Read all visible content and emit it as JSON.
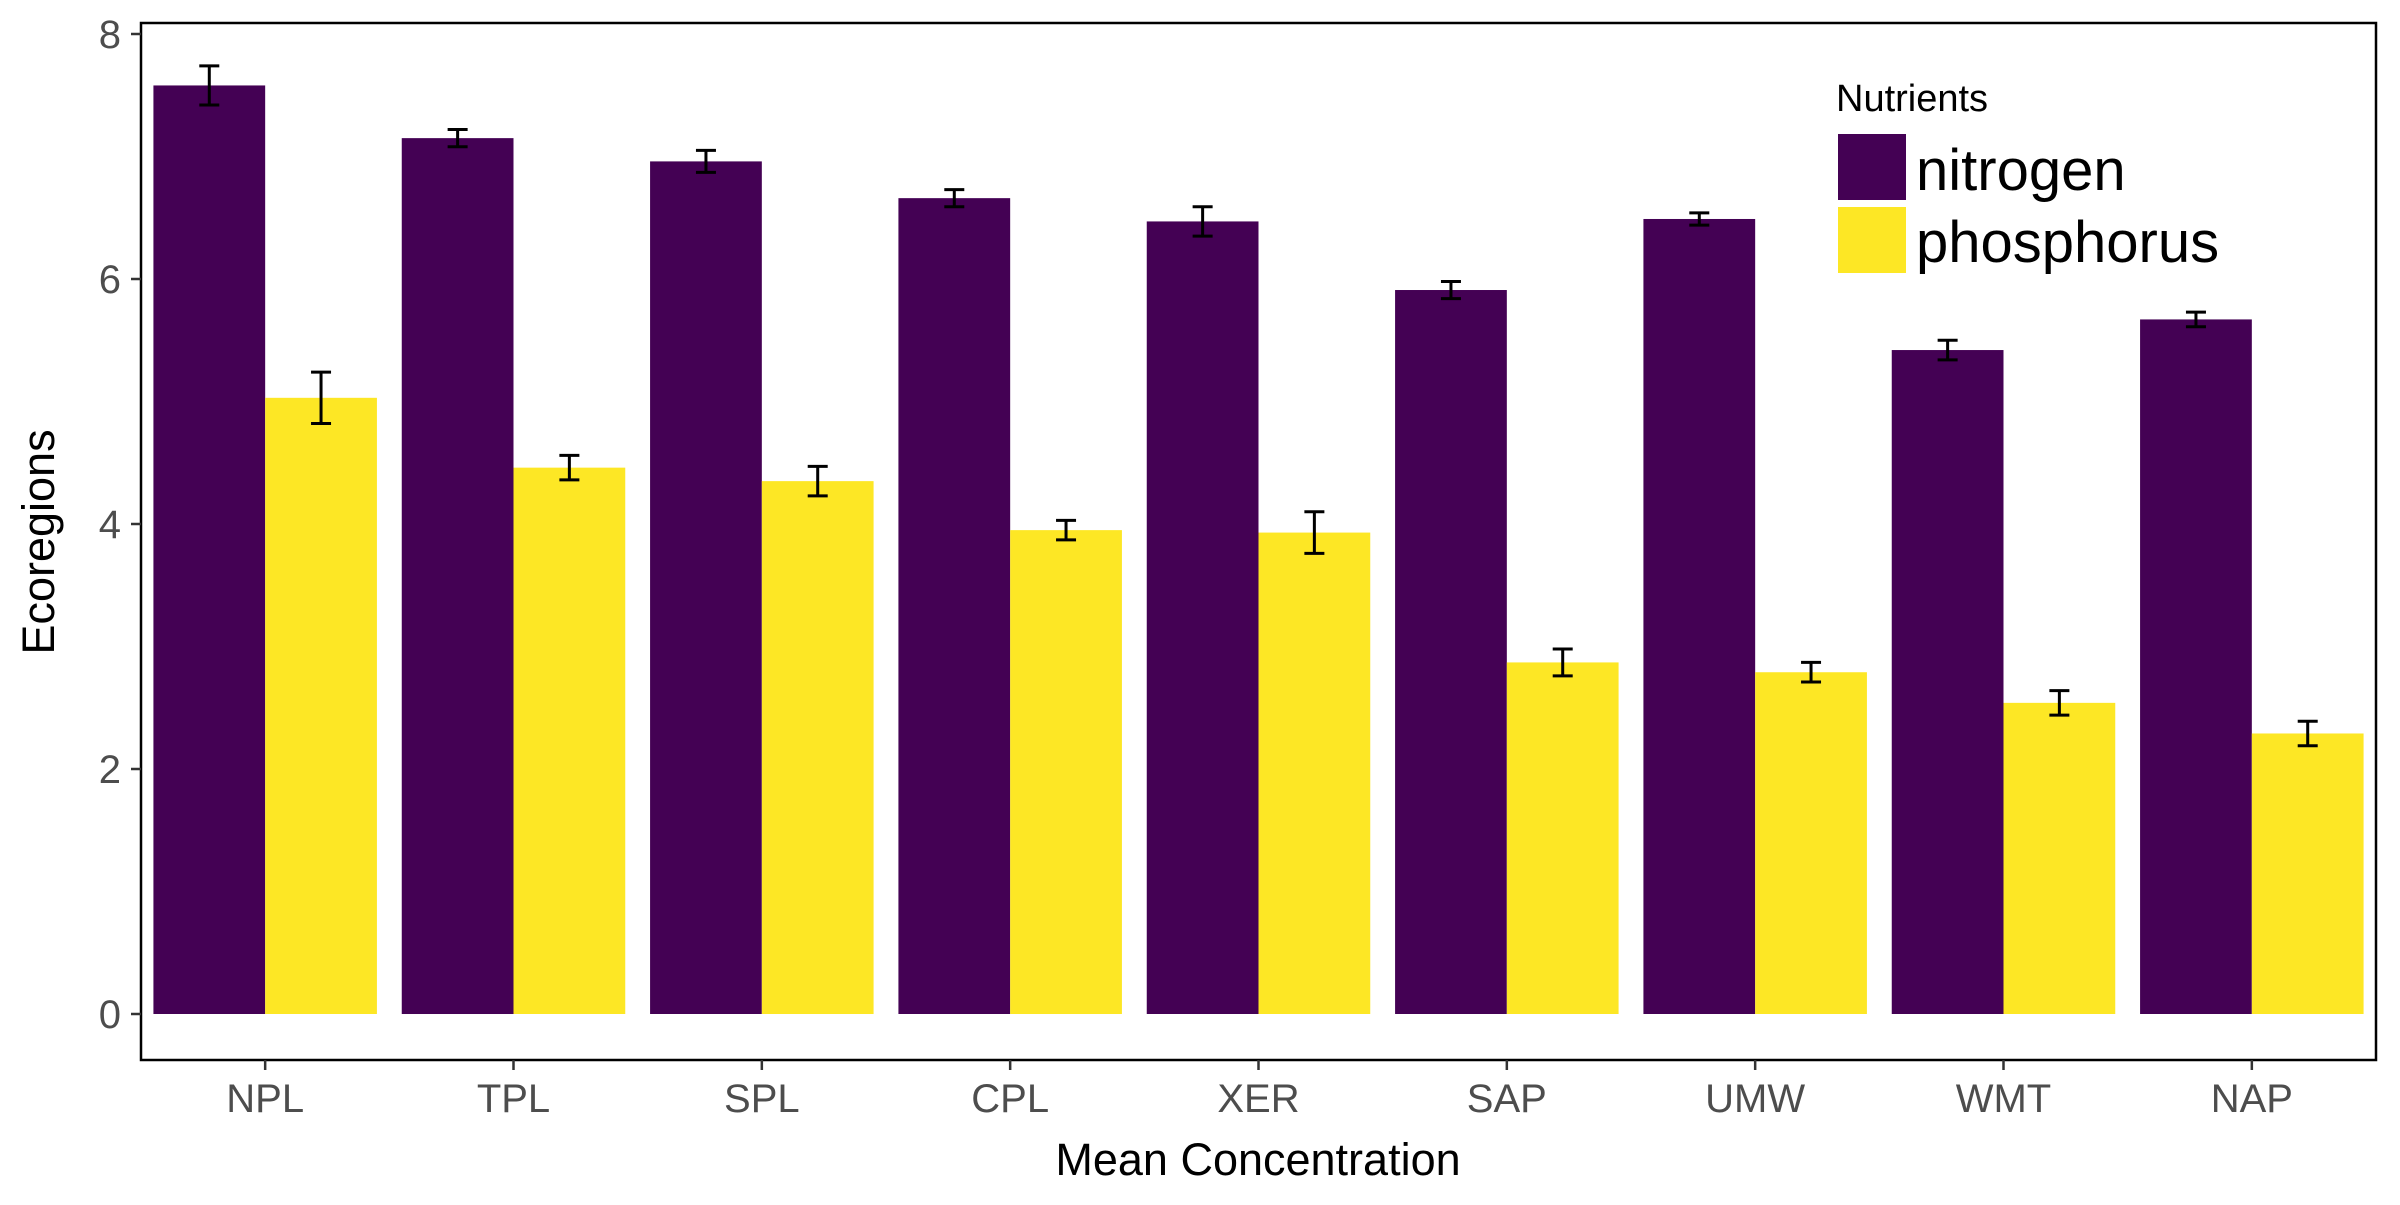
{
  "chart_data": {
    "type": "bar",
    "title": "",
    "xlabel": "Mean Concentration",
    "ylabel": "Ecoregions",
    "ylim": [
      0,
      8.2
    ],
    "yticks": [
      0,
      2,
      4,
      6,
      8
    ],
    "grid": false,
    "legend": {
      "title": "Nutrients",
      "placement": "top-right"
    },
    "categories": [
      "NPL",
      "TPL",
      "SPL",
      "CPL",
      "XER",
      "SAP",
      "UMW",
      "WMT",
      "NAP"
    ],
    "series": [
      {
        "name": "nitrogen",
        "color": "#440154",
        "values": [
          7.58,
          7.15,
          6.96,
          6.66,
          6.47,
          5.91,
          6.49,
          5.42,
          5.67
        ],
        "error": [
          0.16,
          0.07,
          0.09,
          0.07,
          0.12,
          0.07,
          0.05,
          0.08,
          0.06
        ]
      },
      {
        "name": "phosphorus",
        "color": "#FDE725",
        "values": [
          5.03,
          4.46,
          4.35,
          3.95,
          3.93,
          2.87,
          2.79,
          2.54,
          2.29
        ],
        "error": [
          0.21,
          0.1,
          0.12,
          0.08,
          0.17,
          0.11,
          0.08,
          0.1,
          0.1
        ]
      }
    ]
  }
}
